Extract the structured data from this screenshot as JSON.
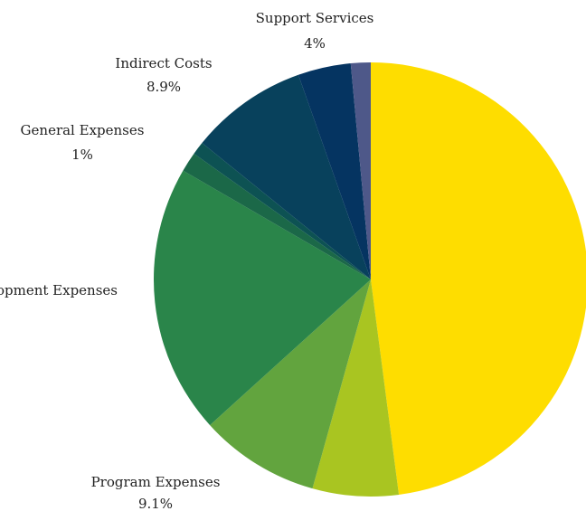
{
  "chart_data": {
    "type": "pie",
    "title": "",
    "start_angle_deg": 0,
    "direction": "clockwise",
    "slices": [
      {
        "label": "",
        "value_label": "",
        "value": 48.7,
        "color": "#FEDD00"
      },
      {
        "label": "",
        "value_label": "",
        "value": 6.5,
        "color": "#A9C521"
      },
      {
        "label": "Program Expenses",
        "value_label": "9.1%",
        "value": 9.1,
        "color": "#62A43E"
      },
      {
        "label": "",
        "value_label": "",
        "value": 20.4,
        "color": "#2A854A"
      },
      {
        "label": "Development Expenses",
        "value_label": "",
        "value": 1.5,
        "color": "#1B6848"
      },
      {
        "label": "General Expenses",
        "value_label": "1%",
        "value": 1.0,
        "color": "#0D5253"
      },
      {
        "label": "Indirect Costs",
        "value_label": "8.9%",
        "value": 8.9,
        "color": "#08415C"
      },
      {
        "label": "Support Services",
        "value_label": "4%",
        "value": 4.0,
        "color": "#053461"
      },
      {
        "label": "",
        "value_label": "",
        "value": 1.5,
        "color": "#4E5889"
      }
    ]
  }
}
